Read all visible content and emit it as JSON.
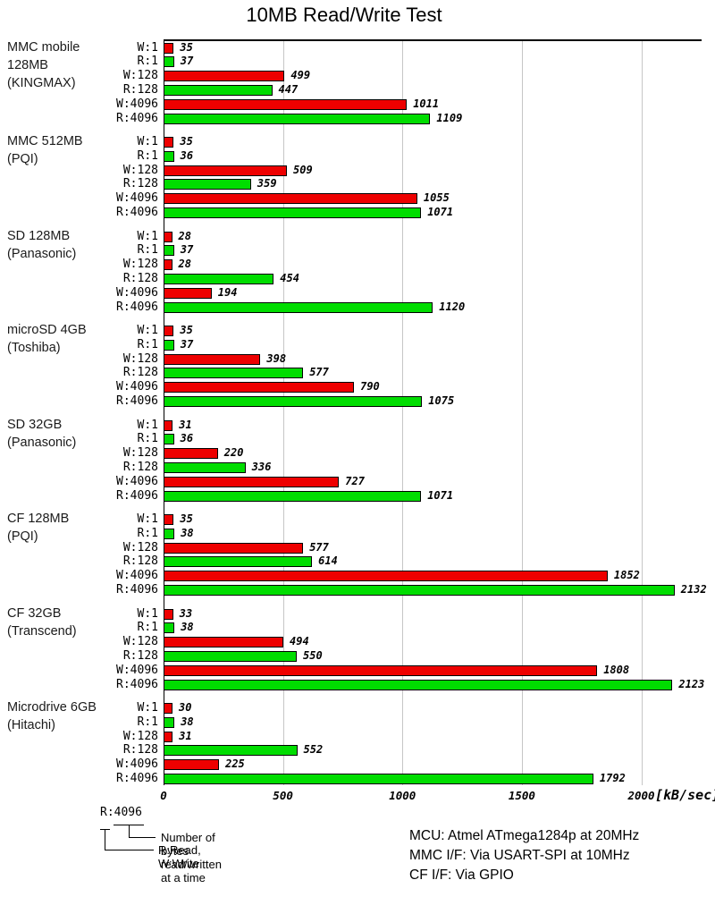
{
  "chart_data": {
    "type": "bar",
    "orientation": "horizontal",
    "title": "10MB Read/Write Test",
    "xlabel": "[kB/sec]",
    "x_ticks": [
      0,
      500,
      1000,
      1500,
      2000
    ],
    "xlim": [
      0,
      2250
    ],
    "grid": "vertical-lines",
    "series_labels": [
      "W:1",
      "R:1",
      "W:128",
      "R:128",
      "W:4096",
      "R:4096"
    ],
    "colors": {
      "write": "#ee0000",
      "read": "#00dd00",
      "bar_border": "#000000",
      "gridline": "#c6c6c6"
    },
    "groups": [
      {
        "label_lines": [
          "MMC mobile",
          "128MB",
          "(KINGMAX)"
        ],
        "values": [
          35,
          37,
          499,
          447,
          1011,
          1109
        ]
      },
      {
        "label_lines": [
          "MMC 512MB",
          "(PQI)"
        ],
        "values": [
          35,
          36,
          509,
          359,
          1055,
          1071
        ]
      },
      {
        "label_lines": [
          "SD 128MB",
          "(Panasonic)"
        ],
        "values": [
          28,
          37,
          28,
          454,
          194,
          1120
        ]
      },
      {
        "label_lines": [
          "microSD 4GB",
          "(Toshiba)"
        ],
        "values": [
          35,
          37,
          398,
          577,
          790,
          1075
        ]
      },
      {
        "label_lines": [
          "SD 32GB",
          "(Panasonic)"
        ],
        "values": [
          31,
          36,
          220,
          336,
          727,
          1071
        ]
      },
      {
        "label_lines": [
          "CF 128MB",
          "(PQI)"
        ],
        "values": [
          35,
          38,
          577,
          614,
          1852,
          2132
        ]
      },
      {
        "label_lines": [
          "CF 32GB",
          "(Transcend)"
        ],
        "values": [
          33,
          38,
          494,
          550,
          1808,
          2123
        ]
      },
      {
        "label_lines": [
          "Microdrive 6GB",
          "(Hitachi)"
        ],
        "values": [
          30,
          38,
          31,
          552,
          225,
          1792
        ]
      }
    ],
    "legend": {
      "example": "R:4096",
      "note_bytes": "Number of bytes read/written at a time",
      "note_rw": "R:Read, W:Write"
    },
    "footnotes": [
      "MCU: Atmel ATmega1284p at 20MHz",
      "MMC I/F: Via USART-SPI at 10MHz",
      "CF I/F: Via GPIO"
    ]
  }
}
